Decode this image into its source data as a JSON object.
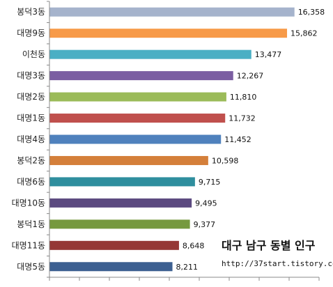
{
  "chart_data": {
    "type": "bar",
    "orientation": "horizontal",
    "categories": [
      "봉덕3동",
      "대명9동",
      "이천동",
      "대명3동",
      "대명2동",
      "대명1동",
      "대명4동",
      "봉덕2동",
      "대명6동",
      "대명10동",
      "봉덕1동",
      "대명11동",
      "대명5동"
    ],
    "value_labels": [
      "16,358",
      "15,862",
      "13,477",
      "12,267",
      "11,810",
      "11,732",
      "11,452",
      "10,598",
      "9,715",
      "9,495",
      "9,377",
      "8,648",
      "8,211"
    ],
    "values": [
      16358,
      15862,
      13477,
      12267,
      11810,
      11732,
      11452,
      10598,
      9715,
      9495,
      9377,
      8648,
      8211
    ],
    "colors": [
      "#a5b3cc",
      "#f79a48",
      "#4aafc4",
      "#7b5ea2",
      "#9bbb59",
      "#c0504d",
      "#4f81bd",
      "#d47f3a",
      "#2f8e9e",
      "#5c4a80",
      "#76993e",
      "#953735",
      "#3c5f91"
    ],
    "xlim": [
      0,
      18000
    ],
    "grid": false,
    "legend": "none",
    "title": "",
    "xlabel": "",
    "ylabel": ""
  },
  "caption": {
    "title": "대구 남구 동별 인구",
    "url": "http://37start.tistory.com"
  }
}
